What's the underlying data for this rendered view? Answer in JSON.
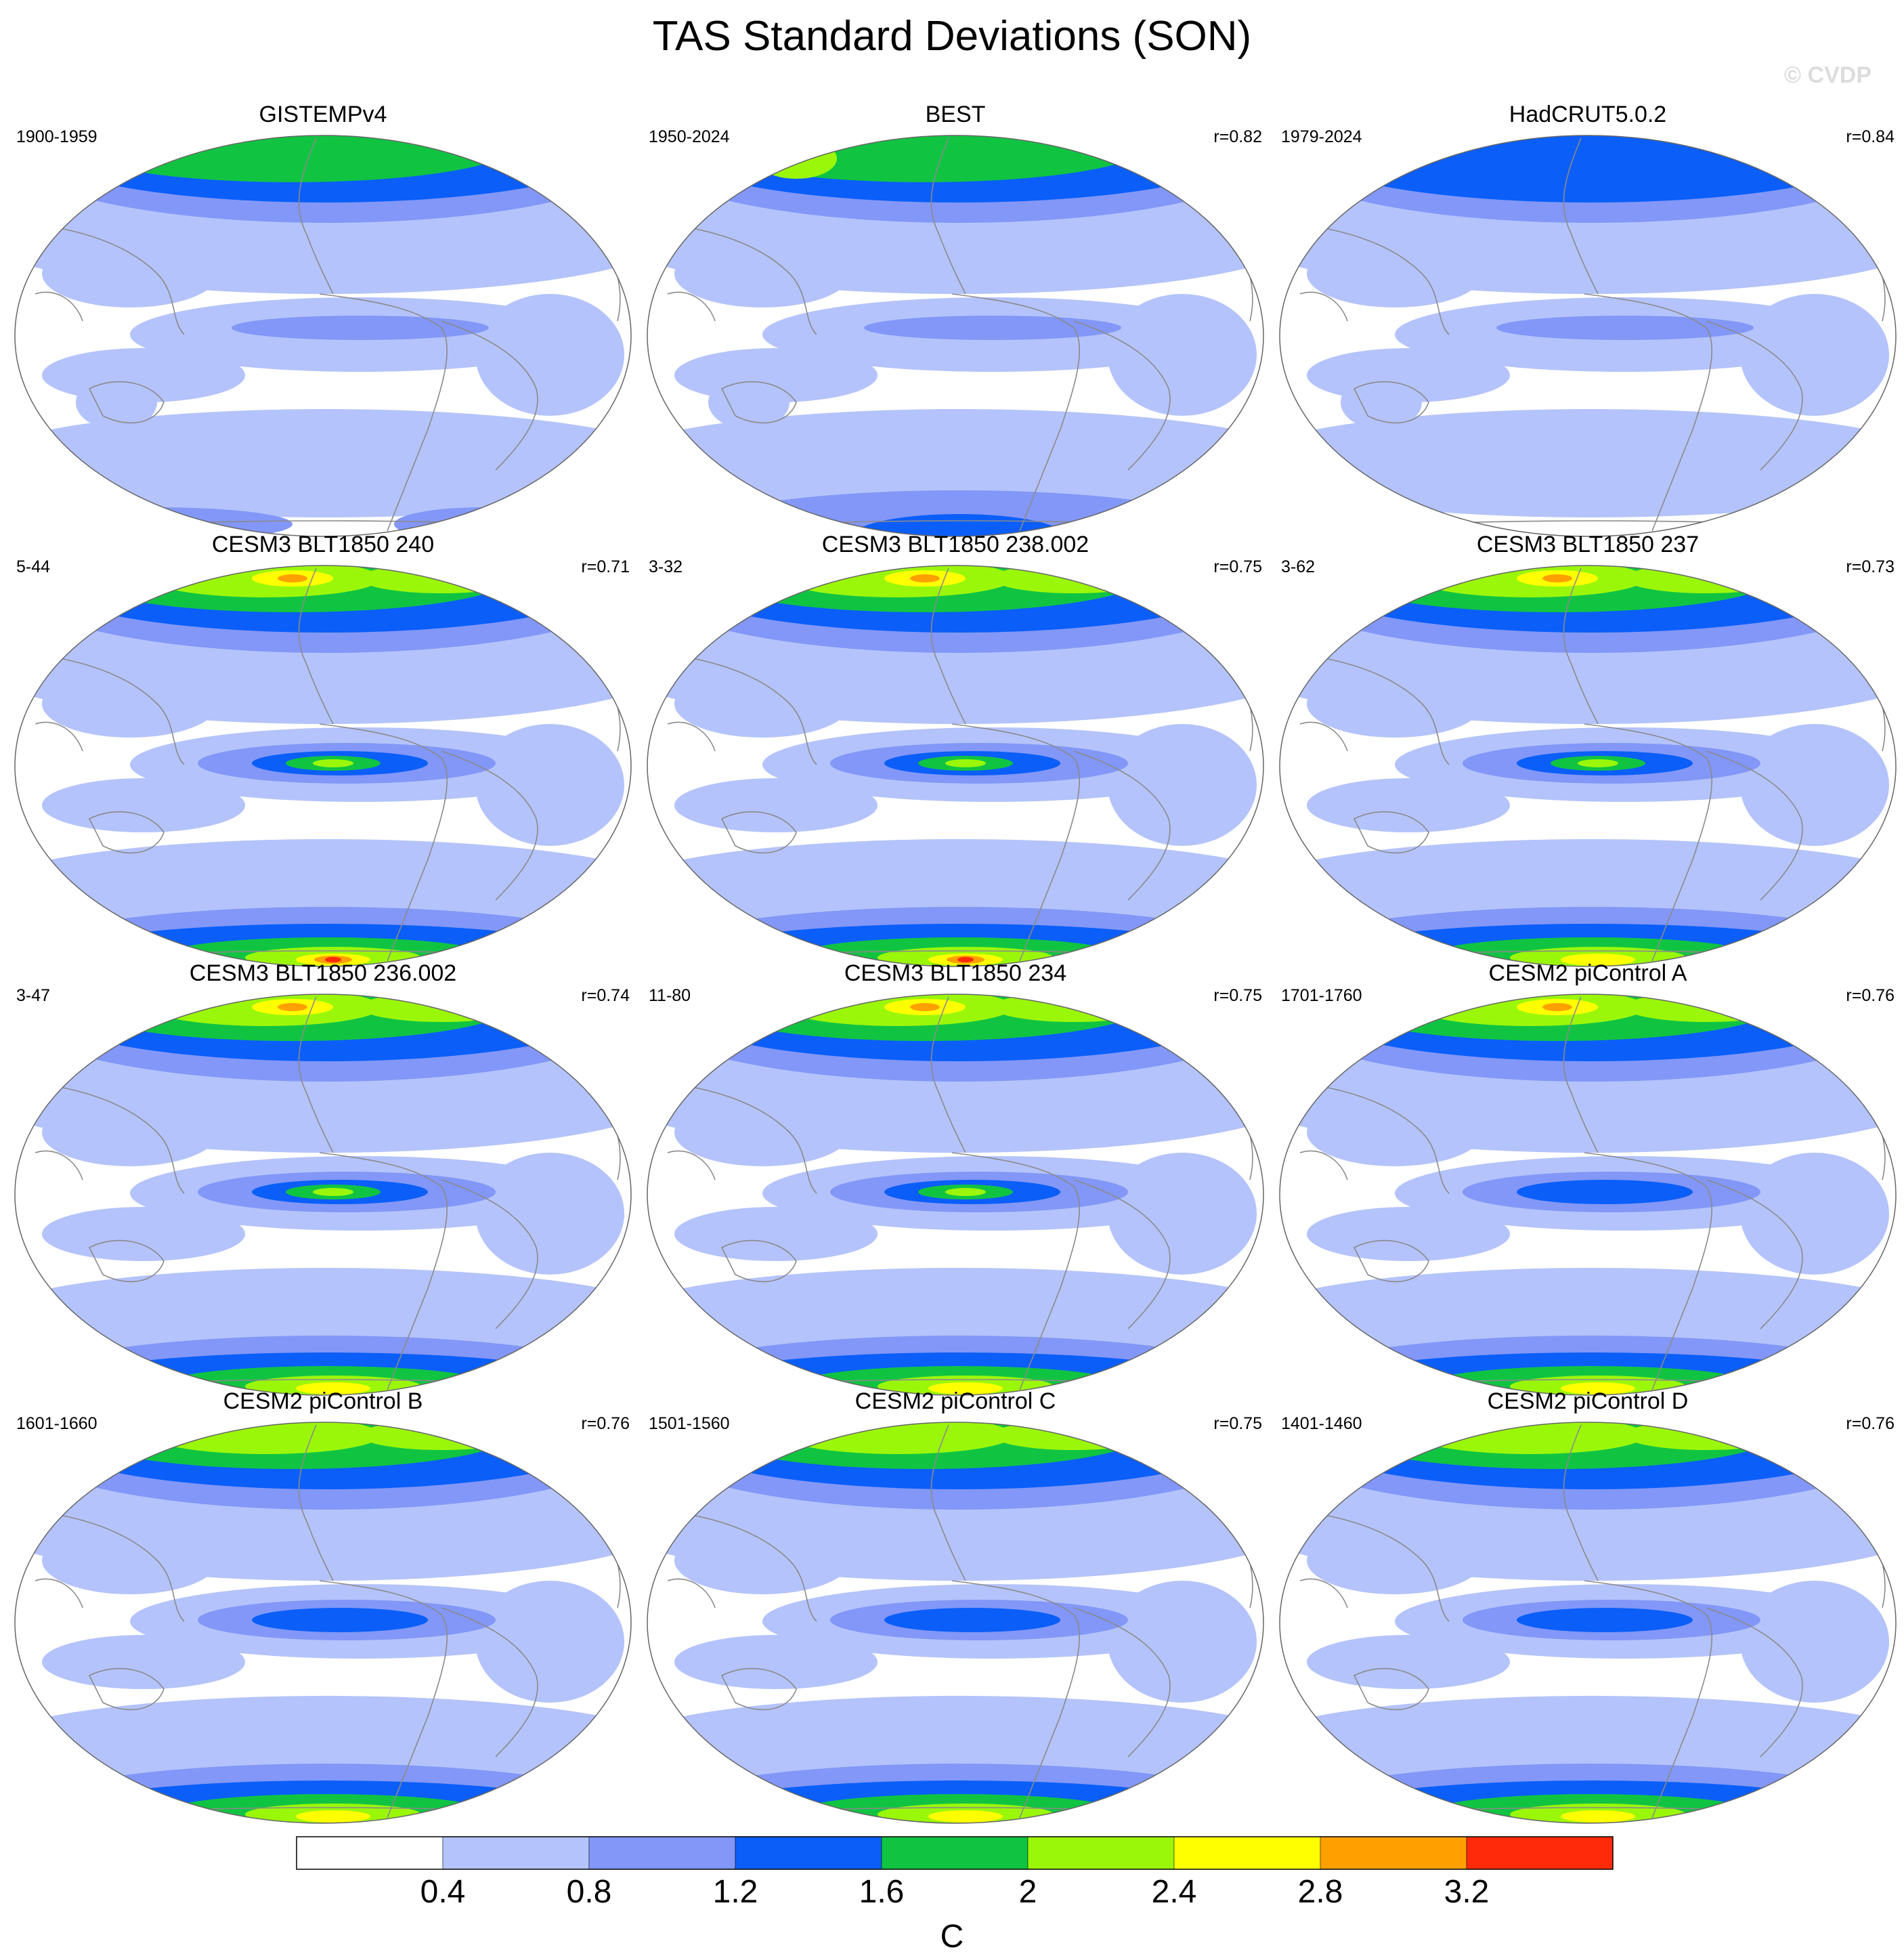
{
  "title": "TAS Standard Deviations (SON)",
  "watermark": "© CVDP",
  "colors": {
    "levels": [
      "#ffffff",
      "#b4c3fb",
      "#8297f7",
      "#0b5ef8",
      "#10c442",
      "#9bf70a",
      "#ffff00",
      "#ffa000",
      "#ff2a0a"
    ],
    "coastline": "#8a8a8a"
  },
  "panels": [
    {
      "title": "GISTEMPv4",
      "period": "1900-1959",
      "r": "",
      "style": "obs",
      "arctic": "green",
      "antarctic": "partial"
    },
    {
      "title": "BEST",
      "period": "1950-2024",
      "r": "r=0.82",
      "style": "obs",
      "arctic": "green",
      "antarctic": "blue"
    },
    {
      "title": "HadCRUT5.0.2",
      "period": "1979-2024",
      "r": "r=0.84",
      "style": "obs",
      "arctic": "blue",
      "antarctic": "none"
    },
    {
      "title": "CESM3 BLT1850 240",
      "period": "5-44",
      "r": "r=0.71",
      "style": "strong",
      "arctic": "hot",
      "antarctic": "hot"
    },
    {
      "title": "CESM3 BLT1850 238.002",
      "period": "3-32",
      "r": "r=0.75",
      "style": "strong",
      "arctic": "hot",
      "antarctic": "hot"
    },
    {
      "title": "CESM3 BLT1850 237",
      "period": "3-62",
      "r": "r=0.73",
      "style": "strong",
      "arctic": "hot",
      "antarctic": "warm"
    },
    {
      "title": "CESM3 BLT1850 236.002",
      "period": "3-47",
      "r": "r=0.74",
      "style": "strong",
      "arctic": "hot",
      "antarctic": "warm"
    },
    {
      "title": "CESM3 BLT1850 234",
      "period": "11-80",
      "r": "r=0.75",
      "style": "strong",
      "arctic": "hot",
      "antarctic": "warm"
    },
    {
      "title": "CESM2 piControl A",
      "period": "1701-1760",
      "r": "r=0.76",
      "style": "mid",
      "arctic": "hot",
      "antarctic": "warm"
    },
    {
      "title": "CESM2 piControl B",
      "period": "1601-1660",
      "r": "r=0.76",
      "style": "mid",
      "arctic": "warm",
      "antarctic": "warm"
    },
    {
      "title": "CESM2 piControl C",
      "period": "1501-1560",
      "r": "r=0.75",
      "style": "mid",
      "arctic": "warm",
      "antarctic": "warm"
    },
    {
      "title": "CESM2 piControl D",
      "period": "1401-1460",
      "r": "r=0.76",
      "style": "mid",
      "arctic": "warm",
      "antarctic": "warm"
    }
  ],
  "colorbar": {
    "labels": [
      "0.4",
      "0.8",
      "1.2",
      "1.6",
      "2",
      "2.4",
      "2.8",
      "3.2"
    ],
    "unit": "C"
  }
}
